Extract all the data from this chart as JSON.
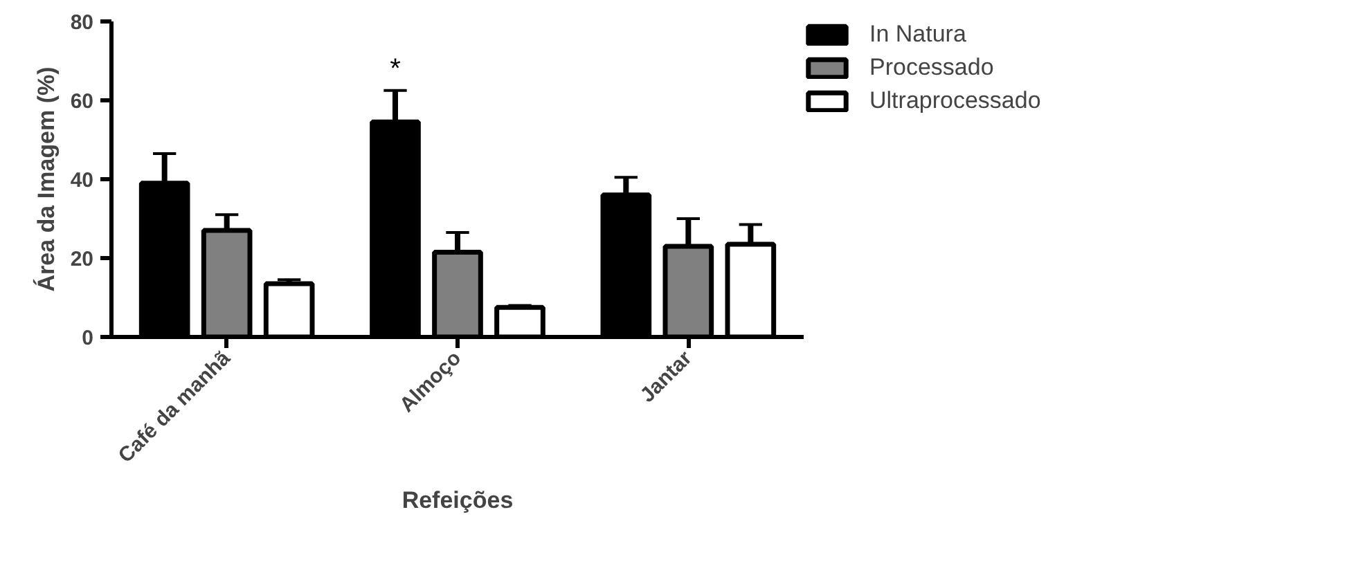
{
  "chart_data": {
    "type": "bar",
    "xlabel": "Refeições",
    "ylabel": "Área da Imagem (%)",
    "categories": [
      "Café da manhã",
      "Almoço",
      "Jantar"
    ],
    "series": [
      {
        "name": "In Natura",
        "color": "#000000",
        "values": [
          39,
          54.5,
          36
        ],
        "errors": [
          [
            39,
            46.5
          ],
          [
            54.5,
            62.5
          ],
          [
            36,
            40.5
          ]
        ]
      },
      {
        "name": "Processado",
        "color": "#808080",
        "values": [
          27,
          21.5,
          23
        ],
        "errors": [
          [
            27,
            31
          ],
          [
            21.5,
            26.5
          ],
          [
            23,
            30
          ]
        ]
      },
      {
        "name": "Ultraprocessado",
        "color": "#ffffff",
        "values": [
          13.5,
          7.5,
          23.5
        ],
        "errors": [
          [
            13.5,
            14.5
          ],
          [
            7.5,
            8
          ],
          [
            23.5,
            28.5
          ]
        ]
      }
    ],
    "ylim": [
      0,
      80
    ],
    "yticks": [
      0,
      20,
      40,
      60,
      80
    ],
    "grid": false,
    "legend": "top right",
    "annotations": [
      "*"
    ]
  }
}
